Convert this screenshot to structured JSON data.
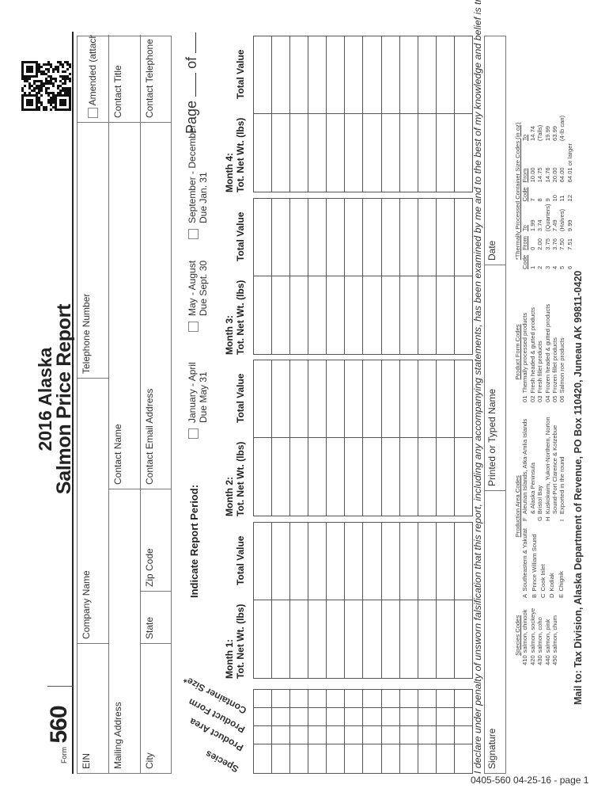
{
  "form": {
    "label": "Form",
    "number": "560"
  },
  "title": {
    "line1": "2016 Alaska",
    "line2": "Salmon Price Report"
  },
  "header": {
    "ein": "EIN",
    "company_name": "Company Name",
    "telephone_number": "Telephone Number",
    "amended": "Amended (attach explanation)",
    "mailing_address": "Mailing Address",
    "contact_name": "Contact Name",
    "contact_title": "Contact Title",
    "city": "City",
    "state": "State",
    "zip_code": "Zip Code",
    "contact_email": "Contact Email Address",
    "contact_telephone": "Contact Telephone"
  },
  "report_period": {
    "label": "Indicate Report Period:",
    "options": [
      {
        "label": "January - April",
        "due": "Due May 31"
      },
      {
        "label": "May - August",
        "due": "Due Sept. 30"
      },
      {
        "label": "September - December",
        "due": "Due Jan. 31"
      }
    ],
    "page_label": "Page",
    "of_label": "of"
  },
  "table": {
    "code_columns": [
      "Species",
      "Product Area",
      "Product Form",
      "Container Size*"
    ],
    "months": [
      {
        "label": "Month 1:",
        "weight": "Tot. Net Wt. (lbs)",
        "value": "Total Value"
      },
      {
        "label": "Month 2:",
        "weight": "Tot. Net Wt. (lbs)",
        "value": "Total Value"
      },
      {
        "label": "Month 3:",
        "weight": "Tot. Net Wt. (lbs)",
        "value": "Total Value"
      },
      {
        "label": "Month 4:",
        "weight": "Tot. Net Wt. (lbs)",
        "value": "Total Value"
      }
    ]
  },
  "declaration": "I declare under penalty of unsworn falsification that this report, including any accompanying statements, has been examined by me and to the best of my knowledge and belief is true and complete.",
  "signature": {
    "signature": "Signature",
    "printed_name": "Printed or Typed Name",
    "date": "Date"
  },
  "species_codes": {
    "title": "Species Codes",
    "items": [
      {
        "code": "410",
        "name": "salmon, chinook"
      },
      {
        "code": "420",
        "name": "salmon, sockeye"
      },
      {
        "code": "430",
        "name": "salmon, coho"
      },
      {
        "code": "440",
        "name": "salmon, pink"
      },
      {
        "code": "450",
        "name": "salmon, chum"
      }
    ]
  },
  "production_area_codes": {
    "title": "Production Area Codes",
    "col1": [
      {
        "code": "A",
        "name": "Southeastern & Yakutat"
      },
      {
        "code": "B",
        "name": "Prince William Sound"
      },
      {
        "code": "C",
        "name": "Cook Inlet"
      },
      {
        "code": "D",
        "name": "Kodiak"
      },
      {
        "code": "E",
        "name": "Chignik"
      }
    ],
    "col2": [
      {
        "code": "F",
        "name": "Aleutian Islands, Atka-Amlia Islands"
      },
      {
        "code": "",
        "name": "& Alaska Peninsula"
      },
      {
        "code": "G",
        "name": "Bristol Bay"
      },
      {
        "code": "H",
        "name": "Kuskokwim, Yukon-Northern, Norton"
      },
      {
        "code": "",
        "name": "Sound-Port Clarence & Kotzebue"
      },
      {
        "code": "I",
        "name": "Exported in the round"
      }
    ]
  },
  "product_form_codes": {
    "title": "Product Form Codes",
    "items": [
      {
        "code": "01",
        "name": "Thermally processed products"
      },
      {
        "code": "02",
        "name": "Fresh headed & gutted products"
      },
      {
        "code": "03",
        "name": "Fresh fillet products"
      },
      {
        "code": "04",
        "name": "Frozen headed & gutted products"
      },
      {
        "code": "05",
        "name": "Frozen fillet products"
      },
      {
        "code": "06",
        "name": "Salmon roe products"
      }
    ]
  },
  "container_codes": {
    "title": "*Thermally Processed Container Size Codes (in oz)",
    "headers": [
      "Code",
      "From",
      "To",
      "Code",
      "From",
      "To"
    ],
    "rows": [
      [
        "1",
        "0",
        "1.99",
        "7",
        "10.00",
        "14.74"
      ],
      [
        "2",
        "2.00",
        "3.74",
        "8",
        "14.75",
        "(Talls)"
      ],
      [
        "3",
        "3.75",
        "(Quarters)",
        "9",
        "14.76",
        "19.99"
      ],
      [
        "4",
        "3.76",
        "7.49",
        "10",
        "20.00",
        "63.99"
      ],
      [
        "5",
        "7.50",
        "(Halves)",
        "11",
        "64.00",
        "(4-lb can)"
      ],
      [
        "6",
        "7.51",
        "9.99",
        "12",
        "64.01 or larger",
        ""
      ]
    ]
  },
  "mail_to": "Mail to: Tax Division, Alaska Department of Revenue, PO Box 110420, Juneau AK 99811-0420",
  "footer": "0405-560  04-25-16 - page 1"
}
